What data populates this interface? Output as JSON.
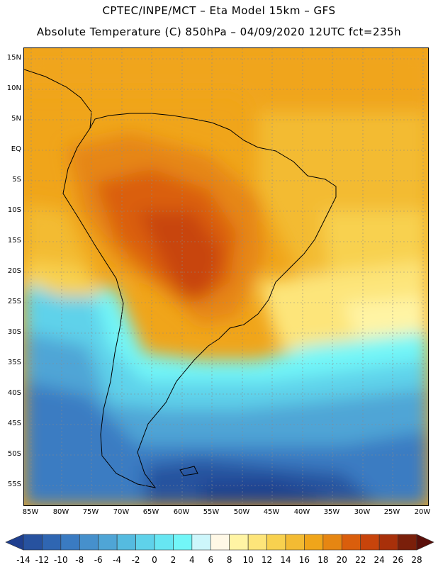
{
  "header": {
    "line1": "CPTEC/INPE/MCT –  Eta Model 15km – GFS",
    "line2": "Absolute Temperature (C) 850hPa – 04/09/2020 12UTC fct=235h"
  },
  "map": {
    "lat_labels": [
      "15N",
      "10N",
      "5N",
      "EQ",
      "5S",
      "10S",
      "15S",
      "20S",
      "25S",
      "30S",
      "35S",
      "40S",
      "45S",
      "50S",
      "55S"
    ],
    "lon_labels": [
      "85W",
      "80W",
      "75W",
      "70W",
      "65W",
      "60W",
      "55W",
      "50W",
      "45W",
      "40W",
      "35W",
      "30W",
      "25W",
      "20W"
    ],
    "extent": {
      "lon_min": -86.5,
      "lon_max": -19.5,
      "lat_min": -58.5,
      "lat_max": 17.0
    }
  },
  "colorbar": {
    "labels": [
      "-14",
      "-12",
      "-10",
      "-8",
      "-6",
      "-4",
      "-2",
      "0",
      "2",
      "4",
      "6",
      "8",
      "10",
      "12",
      "14",
      "16",
      "18",
      "20",
      "22",
      "24",
      "26",
      "28"
    ],
    "colors": [
      "#1f3f8f",
      "#27529f",
      "#2f66b2",
      "#3a7bc2",
      "#4690cc",
      "#4fa5d6",
      "#55bbe0",
      "#5fd2ea",
      "#67e6f2",
      "#72f6f8",
      "#cdf6fb",
      "#fff8e6",
      "#fff4a4",
      "#fde57a",
      "#f8d14f",
      "#f3bb33",
      "#f0a51a",
      "#e68612",
      "#da5e0c",
      "#c8440b",
      "#a8300a",
      "#7a1f0a",
      "#5a0f0a"
    ]
  }
}
